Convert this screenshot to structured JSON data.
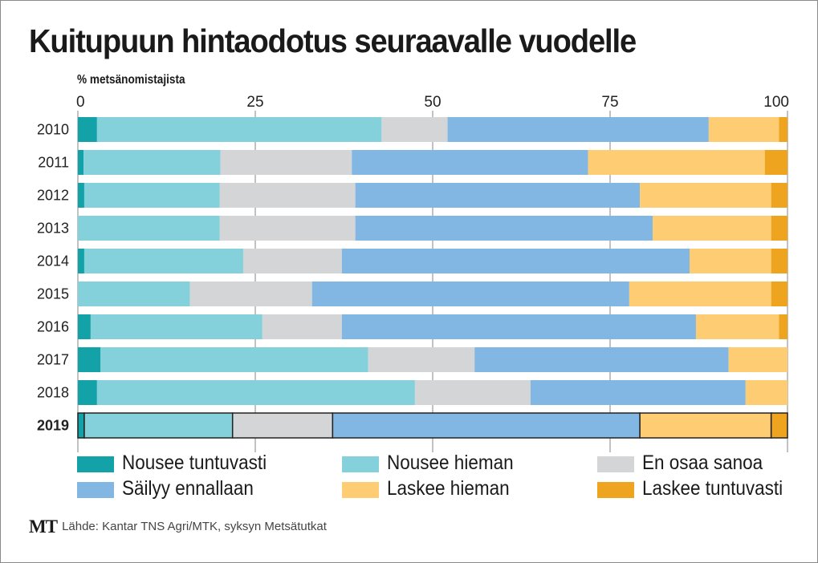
{
  "chart_data": {
    "type": "bar",
    "orientation": "horizontal",
    "stacked": true,
    "title": "Kuitupuun hintaodotus seuraavalle vuodelle",
    "xlabel": "% metsänomistajista",
    "ylabel": "",
    "xlim": [
      0,
      100
    ],
    "xticks": [
      0,
      25,
      50,
      75,
      100
    ],
    "grid": true,
    "legend_position": "bottom",
    "highlight_category": "2019",
    "categories": [
      "2010",
      "2011",
      "2012",
      "2013",
      "2014",
      "2015",
      "2016",
      "2017",
      "2018",
      "2019"
    ],
    "series": [
      {
        "name": "Nousee tuntuvasti",
        "color": "#12a2a8",
        "values": [
          2.7,
          0.8,
          0.9,
          0,
          0.9,
          0,
          1.8,
          3.2,
          2.7,
          0.9
        ]
      },
      {
        "name": "Nousee hieman",
        "color": "#84d1dc",
        "values": [
          40.1,
          19.3,
          19.1,
          20.0,
          22.4,
          15.8,
          24.2,
          37.7,
          44.8,
          20.9
        ]
      },
      {
        "name": "En osaa sanoa",
        "color": "#d3d5d7",
        "values": [
          9.3,
          18.5,
          19.1,
          19.1,
          13.9,
          17.2,
          11.2,
          15.0,
          16.3,
          14.1
        ]
      },
      {
        "name": "Säilyy ennallaan",
        "color": "#82b7e4",
        "values": [
          36.8,
          33.3,
          40.1,
          41.9,
          49.0,
          44.7,
          49.9,
          35.8,
          30.3,
          43.3
        ]
      },
      {
        "name": "Laskee hieman",
        "color": "#fdcc73",
        "values": [
          9.9,
          24.9,
          18.5,
          16.7,
          11.5,
          20.0,
          11.7,
          8.3,
          5.9,
          18.5
        ]
      },
      {
        "name": "Laskee tuntuvasti",
        "color": "#eea41f",
        "values": [
          1.2,
          3.2,
          2.3,
          2.3,
          2.3,
          2.3,
          1.2,
          0,
          0,
          2.3
        ]
      }
    ]
  },
  "source": {
    "logo": "MT",
    "text": "Lähde: Kantar TNS Agri/MTK, syksyn Metsätutkat"
  }
}
